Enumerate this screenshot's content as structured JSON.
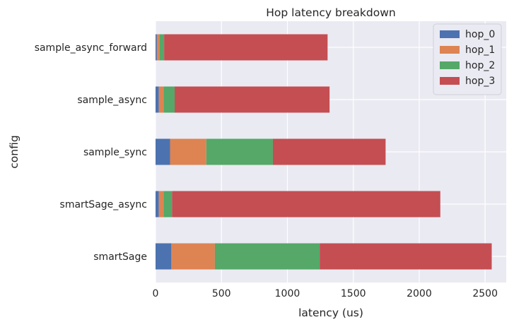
{
  "chart_data": {
    "type": "bar",
    "orientation": "horizontal",
    "stacked": true,
    "title": "Hop latency breakdown",
    "xlabel": "latency (us)",
    "ylabel": "config",
    "xlim": [
      0,
      2660
    ],
    "xticks": [
      0,
      500,
      1000,
      1500,
      2000,
      2500
    ],
    "grid": true,
    "legend_position": "top-right",
    "categories": [
      "smartSage",
      "smartSage_async",
      "sample_sync",
      "sample_async",
      "sample_async_forward"
    ],
    "series": [
      {
        "name": "hop_0",
        "color": "#4c72b0",
        "values": [
          120,
          25,
          110,
          25,
          10
        ]
      },
      {
        "name": "hop_1",
        "color": "#dd8452",
        "values": [
          330,
          35,
          275,
          35,
          20
        ]
      },
      {
        "name": "hop_2",
        "color": "#55a868",
        "values": [
          795,
          65,
          505,
          85,
          35
        ]
      },
      {
        "name": "hop_3",
        "color": "#c44e52",
        "values": [
          1305,
          2035,
          855,
          1175,
          1240
        ]
      }
    ]
  }
}
